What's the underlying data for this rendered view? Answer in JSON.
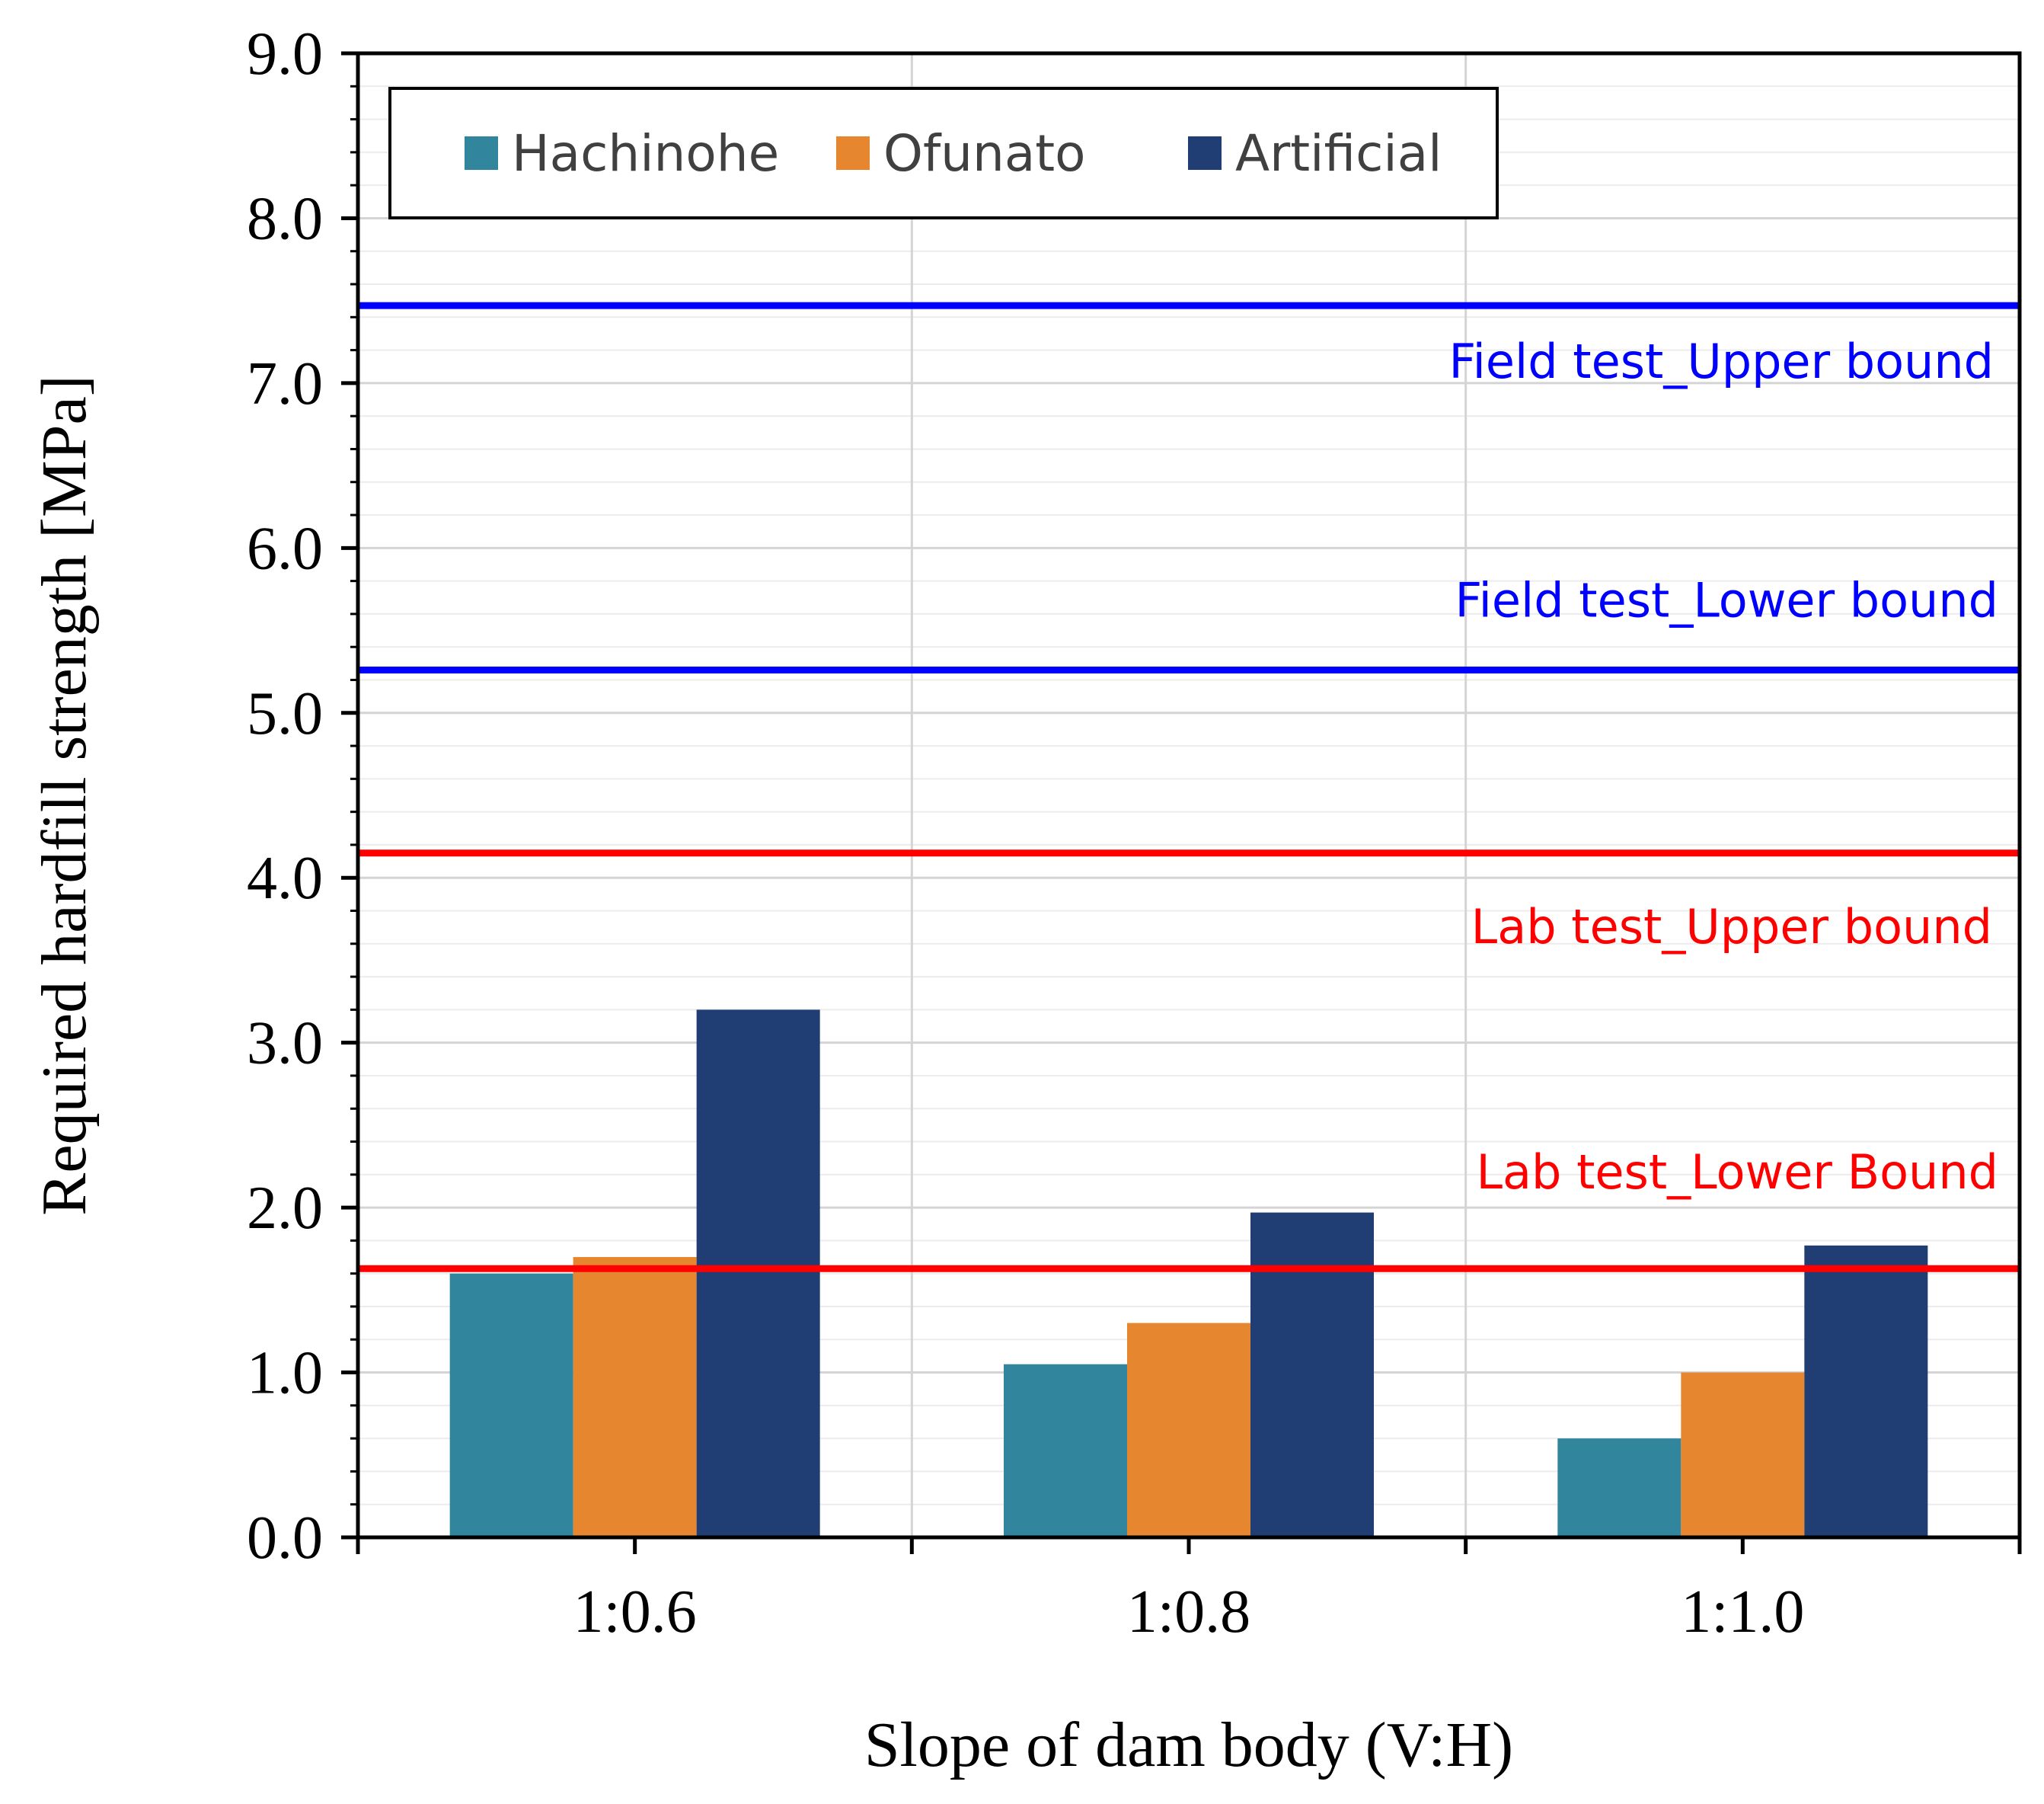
{
  "chart_data": {
    "type": "bar",
    "title": "",
    "xlabel": "Slope of dam body (V:H)",
    "ylabel": "Required hardfill strength [MPa]",
    "ylim": [
      0,
      9
    ],
    "yticks": [
      0,
      1,
      2,
      3,
      4,
      5,
      6,
      7,
      8,
      9
    ],
    "ytick_labels": [
      "0.0",
      "1.0",
      "2.0",
      "3.0",
      "4.0",
      "5.0",
      "6.0",
      "7.0",
      "8.0",
      "9.0"
    ],
    "categories": [
      "1:0.6",
      "1:0.8",
      "1:1.0"
    ],
    "series": [
      {
        "name": "Hachinohe",
        "color": "#31859C",
        "values": [
          1.6,
          1.05,
          0.6
        ]
      },
      {
        "name": "Ofunato",
        "color": "#E6862F",
        "values": [
          1.7,
          1.3,
          1.0
        ]
      },
      {
        "name": "Artificial",
        "color": "#203D74",
        "values": [
          3.2,
          1.97,
          1.77
        ]
      }
    ],
    "reference_lines": [
      {
        "label": "Field test_Upper bound",
        "value": 7.47,
        "color": "#0000FF"
      },
      {
        "label": "Field test_Lower bound",
        "value": 5.26,
        "color": "#0000FF"
      },
      {
        "label": "Lab test_Upper bound",
        "value": 4.15,
        "color": "#FF0000"
      },
      {
        "label": "Lab test_Lower Bound",
        "value": 1.63,
        "color": "#FF0000"
      }
    ],
    "grid": true,
    "legend_position": "top-left"
  }
}
